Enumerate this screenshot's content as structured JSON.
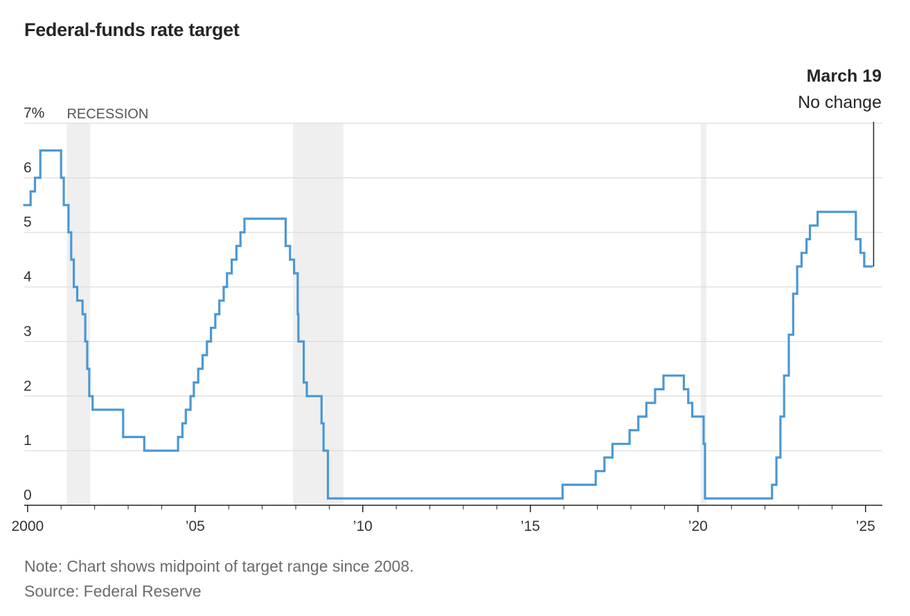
{
  "title": "Federal-funds rate target",
  "notes": {
    "note": "Note: Chart shows midpoint of target range since 2008.",
    "source": "Source: Federal Reserve"
  },
  "colors": {
    "line": "#4a98d4",
    "recession": "#efefef",
    "grid": "#dcdcdc",
    "axis": "#222222",
    "tick_text": "#333333"
  },
  "chart_data": {
    "type": "line",
    "step": true,
    "title": "Federal-funds rate target",
    "xlim": [
      1999.9,
      2025.5
    ],
    "ylim": [
      0,
      7
    ],
    "y_ticks": [
      0,
      1,
      2,
      3,
      4,
      5,
      6,
      7
    ],
    "y_tick_labels": [
      "0",
      "1",
      "2",
      "3",
      "4",
      "5",
      "6",
      "7%"
    ],
    "x_ticks": [
      2000,
      2005,
      2010,
      2015,
      2020,
      2025
    ],
    "x_tick_labels": [
      "2000",
      "’05",
      "’10",
      "’15",
      "’20",
      "’25"
    ],
    "recession_label": "RECESSION",
    "recessions": [
      [
        2001.17,
        2001.87
      ],
      [
        2007.92,
        2009.42
      ],
      [
        2020.08,
        2020.25
      ]
    ],
    "annotation": {
      "date": 2025.22,
      "value": 4.375,
      "title": "March 19",
      "text": "No change"
    },
    "series": [
      {
        "name": "Federal-funds rate target",
        "points": [
          [
            1999.87,
            5.5
          ],
          [
            2000.09,
            5.75
          ],
          [
            2000.22,
            6.0
          ],
          [
            2000.38,
            6.5
          ],
          [
            2001.0,
            6.0
          ],
          [
            2001.08,
            5.5
          ],
          [
            2001.22,
            5.0
          ],
          [
            2001.3,
            4.5
          ],
          [
            2001.38,
            4.0
          ],
          [
            2001.48,
            3.75
          ],
          [
            2001.64,
            3.5
          ],
          [
            2001.72,
            3.0
          ],
          [
            2001.78,
            2.5
          ],
          [
            2001.84,
            2.0
          ],
          [
            2001.94,
            1.75
          ],
          [
            2002.85,
            1.25
          ],
          [
            2003.48,
            1.0
          ],
          [
            2004.49,
            1.25
          ],
          [
            2004.62,
            1.5
          ],
          [
            2004.72,
            1.75
          ],
          [
            2004.86,
            2.0
          ],
          [
            2004.96,
            2.25
          ],
          [
            2005.09,
            2.5
          ],
          [
            2005.22,
            2.75
          ],
          [
            2005.35,
            3.0
          ],
          [
            2005.47,
            3.25
          ],
          [
            2005.6,
            3.5
          ],
          [
            2005.72,
            3.75
          ],
          [
            2005.85,
            4.0
          ],
          [
            2005.95,
            4.25
          ],
          [
            2006.09,
            4.5
          ],
          [
            2006.23,
            4.75
          ],
          [
            2006.35,
            5.0
          ],
          [
            2006.47,
            5.25
          ],
          [
            2007.7,
            4.75
          ],
          [
            2007.83,
            4.5
          ],
          [
            2007.95,
            4.25
          ],
          [
            2008.06,
            3.5
          ],
          [
            2008.08,
            3.0
          ],
          [
            2008.24,
            2.25
          ],
          [
            2008.33,
            2.0
          ],
          [
            2008.77,
            1.5
          ],
          [
            2008.83,
            1.0
          ],
          [
            2008.96,
            0.125
          ],
          [
            2015.96,
            0.375
          ],
          [
            2016.95,
            0.625
          ],
          [
            2017.21,
            0.875
          ],
          [
            2017.45,
            1.125
          ],
          [
            2017.96,
            1.375
          ],
          [
            2018.22,
            1.625
          ],
          [
            2018.46,
            1.875
          ],
          [
            2018.72,
            2.125
          ],
          [
            2018.97,
            2.375
          ],
          [
            2019.58,
            2.125
          ],
          [
            2019.71,
            1.875
          ],
          [
            2019.83,
            1.625
          ],
          [
            2020.17,
            1.125
          ],
          [
            2020.21,
            0.125
          ],
          [
            2022.21,
            0.375
          ],
          [
            2022.34,
            0.875
          ],
          [
            2022.46,
            1.625
          ],
          [
            2022.57,
            2.375
          ],
          [
            2022.71,
            3.125
          ],
          [
            2022.84,
            3.875
          ],
          [
            2022.96,
            4.375
          ],
          [
            2023.09,
            4.625
          ],
          [
            2023.24,
            4.875
          ],
          [
            2023.34,
            5.125
          ],
          [
            2023.57,
            5.375
          ],
          [
            2024.71,
            4.875
          ],
          [
            2024.85,
            4.625
          ],
          [
            2024.96,
            4.375
          ],
          [
            2025.22,
            4.375
          ]
        ]
      }
    ]
  }
}
